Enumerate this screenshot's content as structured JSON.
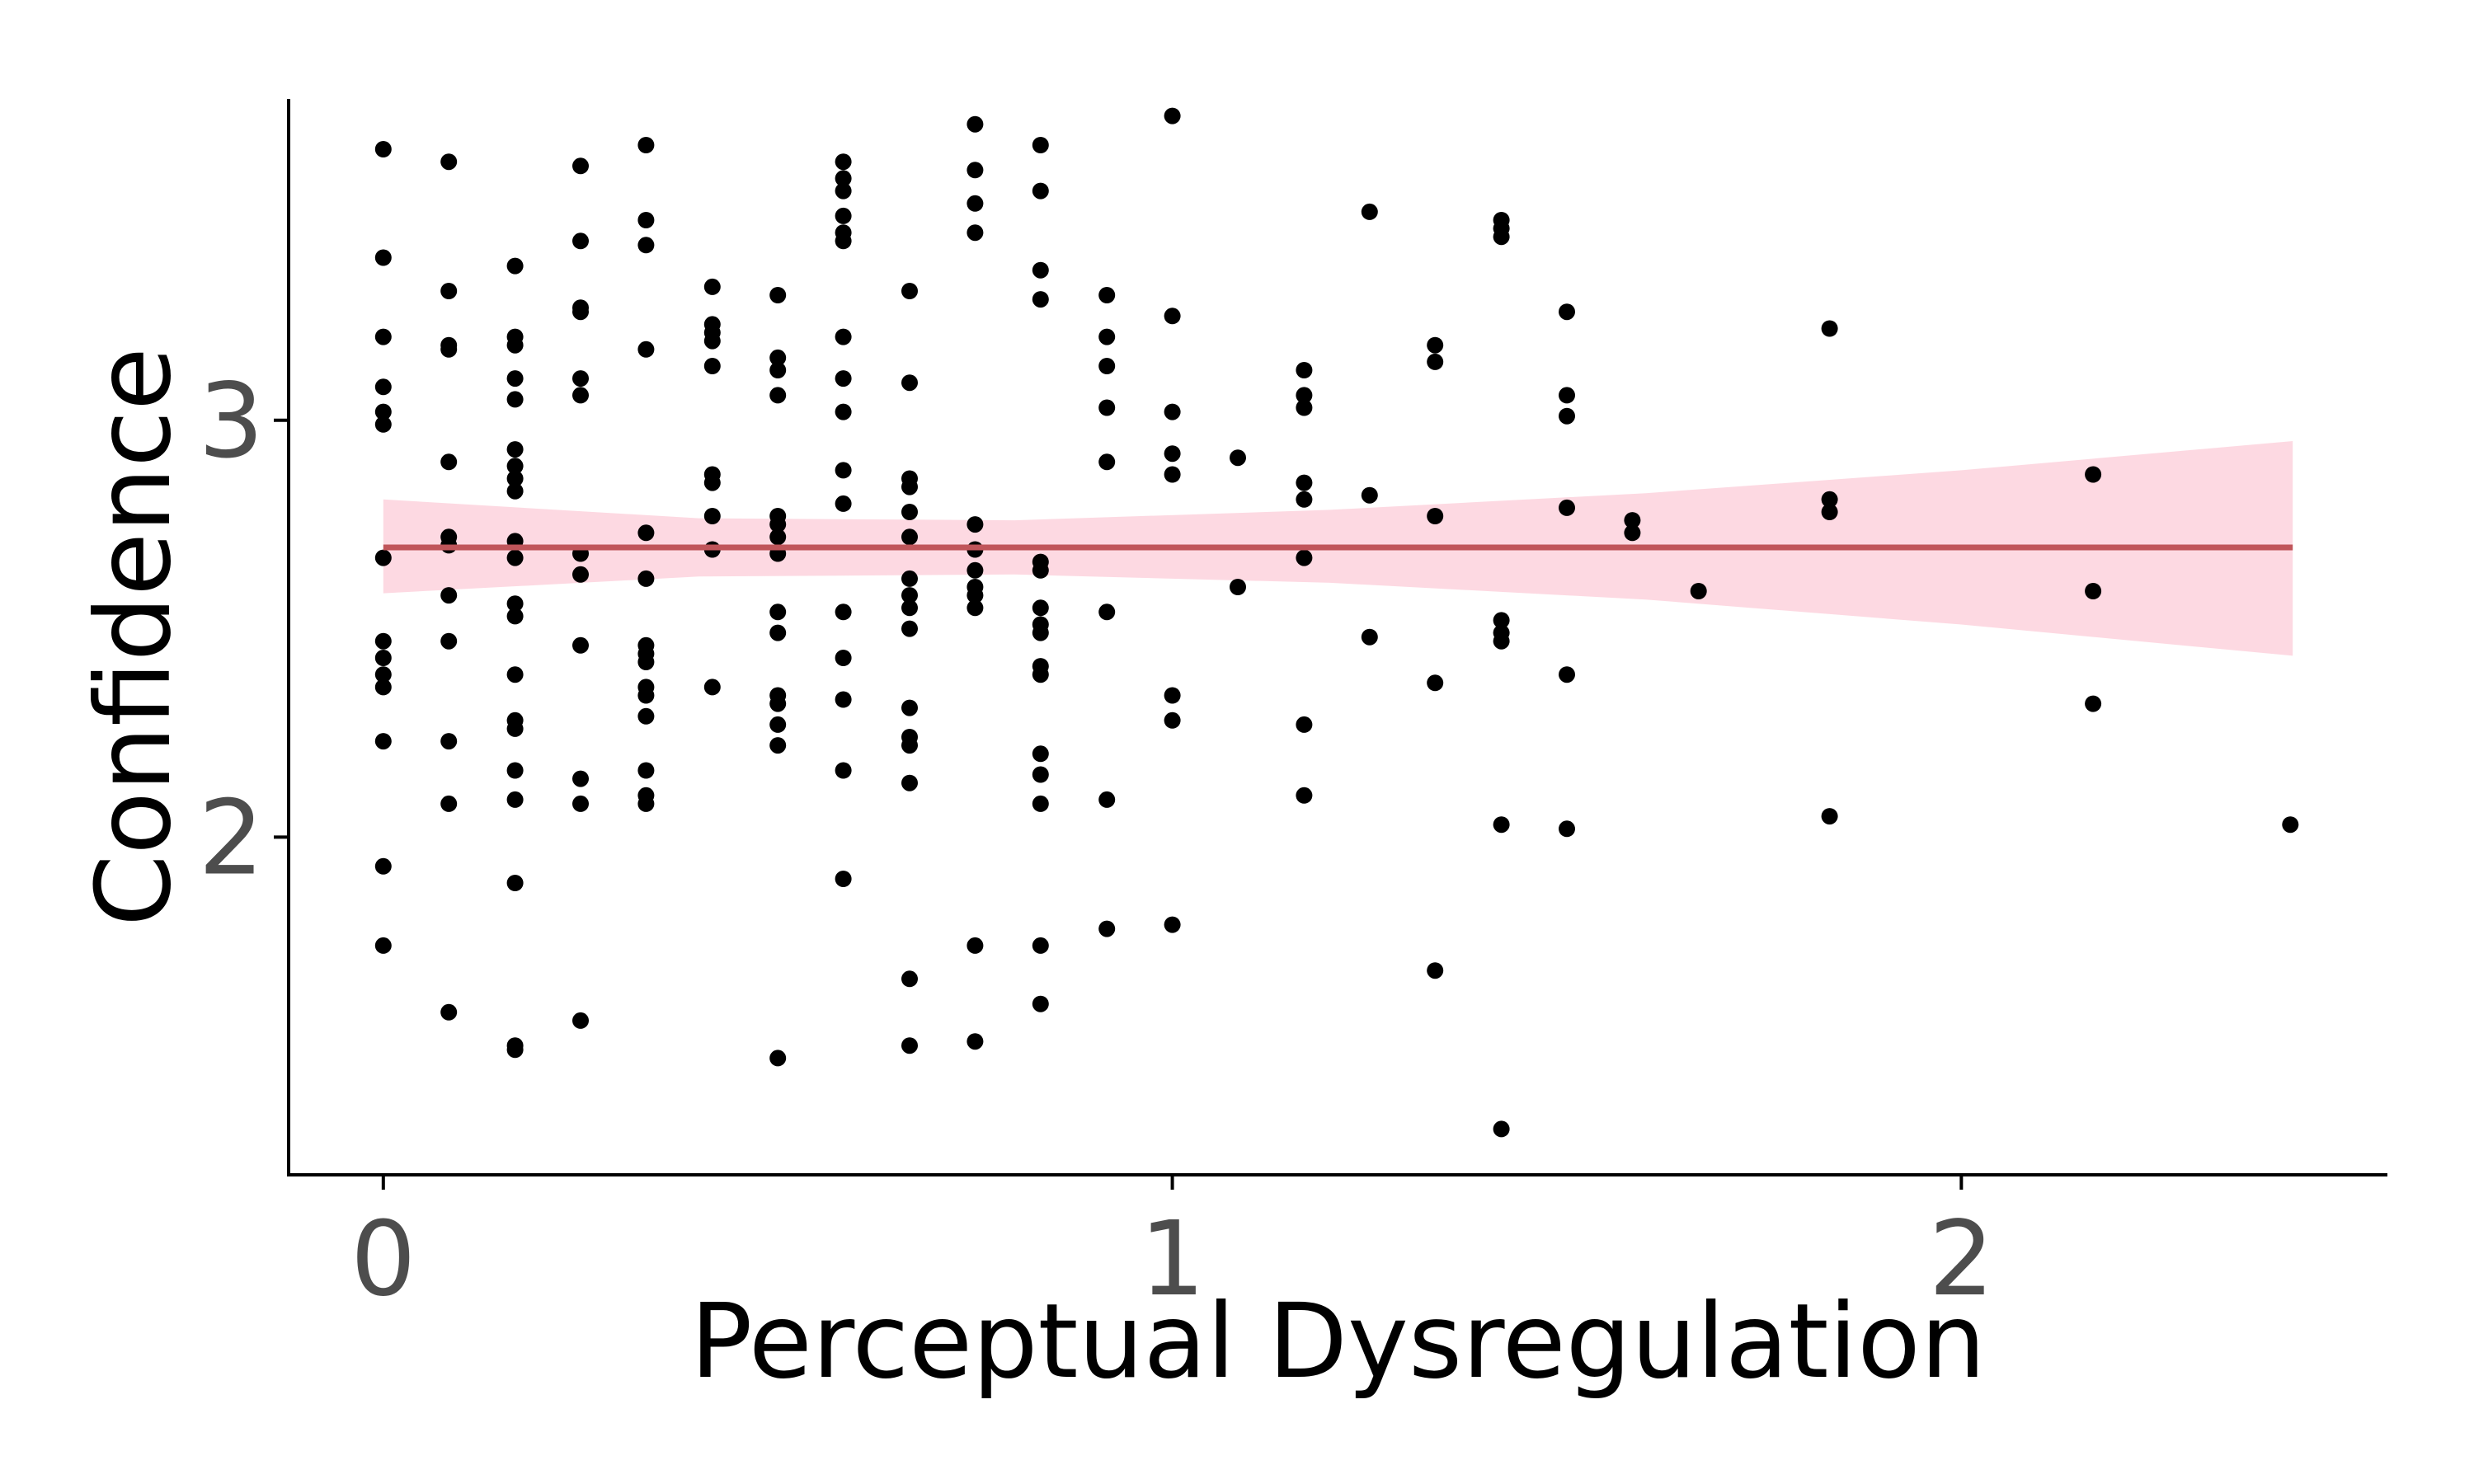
{
  "chart_data": {
    "type": "scatter",
    "title": "",
    "xlabel": "Perceptual Dysregulation",
    "ylabel": "Confidence",
    "xlim": [
      -0.12,
      2.54
    ],
    "ylim": [
      1.19,
      3.83
    ],
    "x_ticks": [
      0,
      1,
      2
    ],
    "y_ticks": [
      2,
      3
    ],
    "x_tick_labels": [
      "0",
      "1",
      "2"
    ],
    "y_tick_labels": [
      "2",
      "3"
    ],
    "grid": false,
    "legend": "none",
    "colors": {
      "points": "#000000",
      "fit_line": "#c0555a",
      "ci_band": "#fcc5d2"
    },
    "fit": {
      "type": "linear",
      "x": [
        0,
        2.42
      ],
      "y": [
        2.695,
        2.695
      ],
      "ci_lower": [
        2.585,
        2.435
      ],
      "ci_upper": [
        2.81,
        2.95
      ],
      "ci_x": [
        0,
        0.4,
        0.8,
        1.2,
        1.6,
        2.0,
        2.42
      ],
      "ci_lo": [
        2.585,
        2.625,
        2.63,
        2.61,
        2.57,
        2.51,
        2.435
      ],
      "ci_hi": [
        2.81,
        2.765,
        2.76,
        2.785,
        2.825,
        2.88,
        2.95
      ]
    },
    "points": [
      [
        0,
        3.65
      ],
      [
        0,
        3.39
      ],
      [
        0,
        3.2
      ],
      [
        0,
        3.08
      ],
      [
        0,
        3.02
      ],
      [
        0,
        2.99
      ],
      [
        0,
        2.67
      ],
      [
        0,
        2.47
      ],
      [
        0,
        2.43
      ],
      [
        0,
        2.39
      ],
      [
        0,
        2.36
      ],
      [
        0,
        2.23
      ],
      [
        0,
        1.93
      ],
      [
        0,
        1.74
      ],
      [
        0.083,
        3.62
      ],
      [
        0.083,
        3.31
      ],
      [
        0.083,
        3.18
      ],
      [
        0.083,
        3.17
      ],
      [
        0.083,
        2.9
      ],
      [
        0.083,
        2.72
      ],
      [
        0.083,
        2.7
      ],
      [
        0.083,
        2.58
      ],
      [
        0.083,
        2.47
      ],
      [
        0.083,
        2.23
      ],
      [
        0.083,
        2.08
      ],
      [
        0.083,
        1.58
      ],
      [
        0.167,
        3.37
      ],
      [
        0.167,
        3.2
      ],
      [
        0.167,
        3.18
      ],
      [
        0.167,
        3.1
      ],
      [
        0.167,
        3.05
      ],
      [
        0.167,
        2.93
      ],
      [
        0.167,
        2.89
      ],
      [
        0.167,
        2.86
      ],
      [
        0.167,
        2.83
      ],
      [
        0.167,
        2.71
      ],
      [
        0.167,
        2.67
      ],
      [
        0.167,
        2.56
      ],
      [
        0.167,
        2.53
      ],
      [
        0.167,
        2.39
      ],
      [
        0.167,
        2.28
      ],
      [
        0.167,
        2.26
      ],
      [
        0.167,
        2.16
      ],
      [
        0.167,
        2.09
      ],
      [
        0.167,
        1.89
      ],
      [
        0.167,
        1.5
      ],
      [
        0.167,
        1.49
      ],
      [
        0.25,
        3.61
      ],
      [
        0.25,
        3.43
      ],
      [
        0.25,
        3.27
      ],
      [
        0.25,
        3.26
      ],
      [
        0.25,
        3.1
      ],
      [
        0.25,
        3.06
      ],
      [
        0.25,
        2.68
      ],
      [
        0.25,
        2.63
      ],
      [
        0.25,
        2.46
      ],
      [
        0.25,
        2.14
      ],
      [
        0.25,
        2.08
      ],
      [
        0.25,
        1.56
      ],
      [
        0.333,
        3.66
      ],
      [
        0.333,
        3.48
      ],
      [
        0.333,
        3.42
      ],
      [
        0.333,
        3.17
      ],
      [
        0.333,
        2.73
      ],
      [
        0.333,
        2.62
      ],
      [
        0.333,
        2.46
      ],
      [
        0.333,
        2.44
      ],
      [
        0.333,
        2.42
      ],
      [
        0.333,
        2.36
      ],
      [
        0.333,
        2.34
      ],
      [
        0.333,
        2.29
      ],
      [
        0.333,
        2.16
      ],
      [
        0.333,
        2.1
      ],
      [
        0.333,
        2.08
      ],
      [
        0.417,
        3.32
      ],
      [
        0.417,
        3.23
      ],
      [
        0.417,
        3.21
      ],
      [
        0.417,
        3.19
      ],
      [
        0.417,
        3.13
      ],
      [
        0.417,
        2.87
      ],
      [
        0.417,
        2.85
      ],
      [
        0.417,
        2.77
      ],
      [
        0.417,
        2.69
      ],
      [
        0.417,
        2.36
      ],
      [
        0.5,
        3.3
      ],
      [
        0.5,
        3.15
      ],
      [
        0.5,
        3.12
      ],
      [
        0.5,
        3.06
      ],
      [
        0.5,
        2.77
      ],
      [
        0.5,
        2.75
      ],
      [
        0.5,
        2.72
      ],
      [
        0.5,
        2.68
      ],
      [
        0.5,
        2.54
      ],
      [
        0.5,
        2.49
      ],
      [
        0.5,
        2.34
      ],
      [
        0.5,
        2.32
      ],
      [
        0.5,
        2.27
      ],
      [
        0.5,
        2.22
      ],
      [
        0.5,
        1.47
      ],
      [
        0.583,
        3.62
      ],
      [
        0.583,
        3.58
      ],
      [
        0.583,
        3.55
      ],
      [
        0.583,
        3.49
      ],
      [
        0.583,
        3.45
      ],
      [
        0.583,
        3.43
      ],
      [
        0.583,
        3.2
      ],
      [
        0.583,
        3.1
      ],
      [
        0.583,
        3.02
      ],
      [
        0.583,
        2.88
      ],
      [
        0.583,
        2.8
      ],
      [
        0.583,
        2.54
      ],
      [
        0.583,
        2.43
      ],
      [
        0.583,
        2.33
      ],
      [
        0.583,
        2.16
      ],
      [
        0.583,
        1.9
      ],
      [
        0.667,
        3.31
      ],
      [
        0.667,
        3.09
      ],
      [
        0.667,
        2.86
      ],
      [
        0.667,
        2.84
      ],
      [
        0.667,
        2.78
      ],
      [
        0.667,
        2.72
      ],
      [
        0.667,
        2.62
      ],
      [
        0.667,
        2.58
      ],
      [
        0.667,
        2.55
      ],
      [
        0.667,
        2.5
      ],
      [
        0.667,
        2.31
      ],
      [
        0.667,
        2.24
      ],
      [
        0.667,
        2.22
      ],
      [
        0.667,
        2.13
      ],
      [
        0.667,
        1.66
      ],
      [
        0.667,
        1.5
      ],
      [
        0.75,
        3.71
      ],
      [
        0.75,
        3.6
      ],
      [
        0.75,
        3.52
      ],
      [
        0.75,
        3.45
      ],
      [
        0.75,
        2.75
      ],
      [
        0.75,
        2.69
      ],
      [
        0.75,
        2.64
      ],
      [
        0.75,
        2.6
      ],
      [
        0.75,
        2.58
      ],
      [
        0.75,
        2.55
      ],
      [
        0.75,
        1.74
      ],
      [
        0.75,
        1.51
      ],
      [
        0.833,
        3.66
      ],
      [
        0.833,
        3.55
      ],
      [
        0.833,
        3.36
      ],
      [
        0.833,
        3.29
      ],
      [
        0.833,
        2.66
      ],
      [
        0.833,
        2.64
      ],
      [
        0.833,
        2.55
      ],
      [
        0.833,
        2.51
      ],
      [
        0.833,
        2.49
      ],
      [
        0.833,
        2.41
      ],
      [
        0.833,
        2.39
      ],
      [
        0.833,
        2.2
      ],
      [
        0.833,
        2.15
      ],
      [
        0.833,
        2.08
      ],
      [
        0.833,
        1.74
      ],
      [
        0.833,
        1.6
      ],
      [
        0.917,
        3.3
      ],
      [
        0.917,
        3.2
      ],
      [
        0.917,
        3.13
      ],
      [
        0.917,
        3.03
      ],
      [
        0.917,
        2.9
      ],
      [
        0.917,
        2.54
      ],
      [
        0.917,
        2.09
      ],
      [
        0.917,
        1.78
      ],
      [
        1.0,
        3.73
      ],
      [
        1.0,
        3.25
      ],
      [
        1.0,
        3.02
      ],
      [
        1.0,
        2.92
      ],
      [
        1.0,
        2.87
      ],
      [
        1.0,
        2.34
      ],
      [
        1.0,
        2.28
      ],
      [
        1.0,
        1.79
      ],
      [
        1.083,
        2.91
      ],
      [
        1.083,
        2.6
      ],
      [
        1.167,
        3.12
      ],
      [
        1.167,
        3.06
      ],
      [
        1.167,
        3.03
      ],
      [
        1.167,
        2.85
      ],
      [
        1.167,
        2.81
      ],
      [
        1.167,
        2.67
      ],
      [
        1.167,
        2.27
      ],
      [
        1.167,
        2.1
      ],
      [
        1.25,
        3.5
      ],
      [
        1.25,
        2.82
      ],
      [
        1.25,
        2.48
      ],
      [
        1.333,
        3.18
      ],
      [
        1.333,
        3.14
      ],
      [
        1.333,
        2.77
      ],
      [
        1.333,
        2.37
      ],
      [
        1.333,
        1.68
      ],
      [
        1.417,
        3.48
      ],
      [
        1.417,
        3.46
      ],
      [
        1.417,
        3.44
      ],
      [
        1.417,
        2.52
      ],
      [
        1.417,
        2.49
      ],
      [
        1.417,
        2.47
      ],
      [
        1.417,
        2.03
      ],
      [
        1.417,
        1.3
      ],
      [
        1.5,
        3.26
      ],
      [
        1.5,
        3.06
      ],
      [
        1.5,
        3.01
      ],
      [
        1.5,
        2.79
      ],
      [
        1.5,
        2.39
      ],
      [
        1.5,
        2.02
      ],
      [
        1.583,
        2.76
      ],
      [
        1.583,
        2.73
      ],
      [
        1.667,
        2.59
      ],
      [
        1.833,
        3.22
      ],
      [
        1.833,
        2.81
      ],
      [
        1.833,
        2.78
      ],
      [
        1.833,
        2.05
      ],
      [
        2.167,
        2.87
      ],
      [
        2.167,
        2.59
      ],
      [
        2.167,
        2.32
      ],
      [
        2.417,
        2.03
      ]
    ]
  }
}
